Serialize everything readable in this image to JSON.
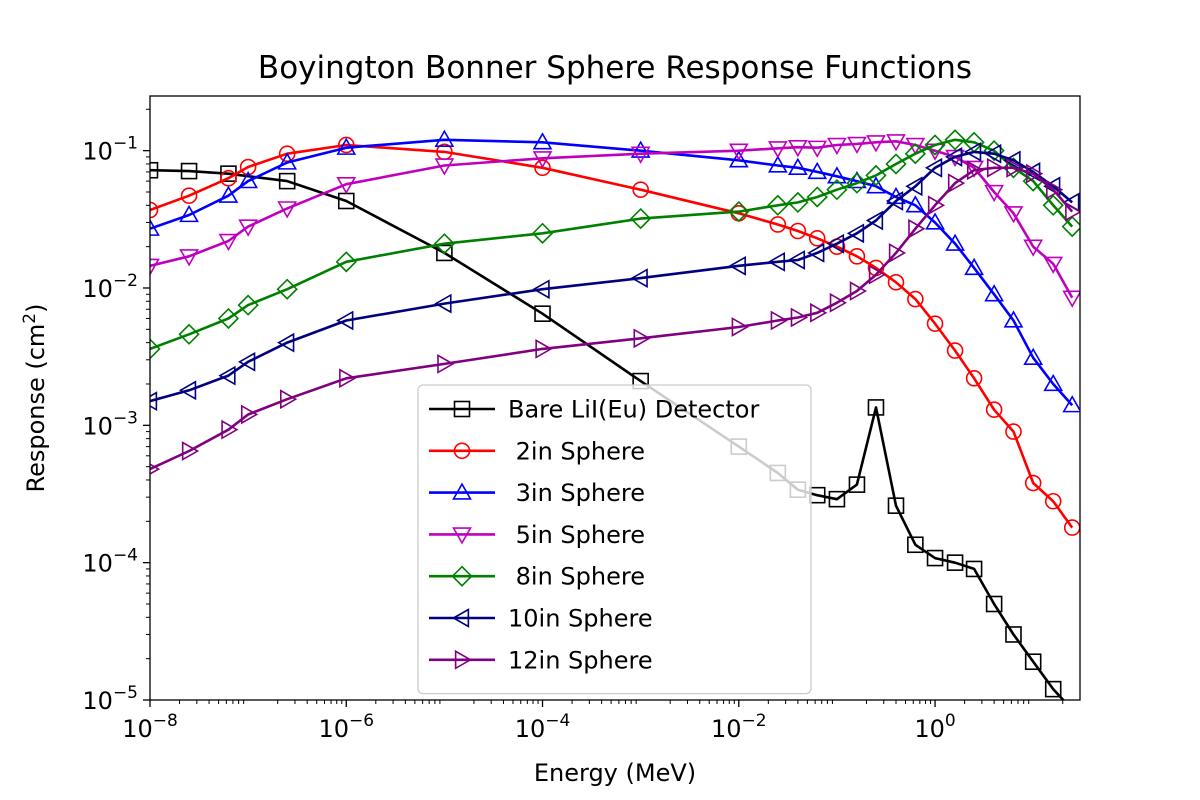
{
  "chart_data": {
    "type": "line",
    "title": "Boyington Bonner Sphere Response Functions",
    "xlabel": "Energy (MeV)",
    "ylabel_prefix": "Response (cm",
    "ylabel_sup": "2",
    "ylabel_suffix": ")",
    "xscale": "log",
    "yscale": "log",
    "xlim": [
      1e-08,
      30
    ],
    "ylim": [
      1e-05,
      0.25
    ],
    "x_ticks": [
      {
        "base": "10",
        "exp": "−8",
        "value": 1e-08
      },
      {
        "base": "10",
        "exp": "−6",
        "value": 1e-06
      },
      {
        "base": "10",
        "exp": "−4",
        "value": 0.0001
      },
      {
        "base": "10",
        "exp": "−2",
        "value": 0.01
      },
      {
        "base": "10",
        "exp": "0",
        "value": 1
      }
    ],
    "y_ticks": [
      {
        "base": "10",
        "exp": "−5",
        "value": 1e-05
      },
      {
        "base": "10",
        "exp": "−4",
        "value": 0.0001
      },
      {
        "base": "10",
        "exp": "−3",
        "value": 0.001
      },
      {
        "base": "10",
        "exp": "−2",
        "value": 0.01
      },
      {
        "base": "10",
        "exp": "−1",
        "value": 0.1
      }
    ],
    "grid": false,
    "legend_position": "lower-center",
    "series": [
      {
        "name": "Bare LiI(Eu) Detector",
        "color": "#000000",
        "marker": "square",
        "points": [
          [
            1e-08,
            0.072
          ],
          [
            2.5e-08,
            0.071
          ],
          [
            6.3e-08,
            0.068
          ],
          [
            2.5e-07,
            0.06
          ],
          [
            1e-06,
            0.043
          ],
          [
            1e-05,
            0.018
          ],
          [
            0.0001,
            0.0065
          ],
          [
            0.001,
            0.0021
          ],
          [
            0.01,
            0.0007
          ],
          [
            0.025,
            0.00045
          ],
          [
            0.04,
            0.00034
          ],
          [
            0.063,
            0.00031
          ],
          [
            0.1,
            0.00029
          ],
          [
            0.16,
            0.00037
          ],
          [
            0.25,
            0.00135
          ],
          [
            0.4,
            0.00026
          ],
          [
            0.63,
            0.000135
          ],
          [
            1.0,
            0.000108
          ],
          [
            1.6,
            0.0001
          ],
          [
            2.5,
            9e-05
          ],
          [
            4.0,
            5e-05
          ],
          [
            6.3,
            3e-05
          ],
          [
            10,
            1.9e-05
          ],
          [
            16,
            1.2e-05
          ],
          [
            25,
            8.5e-06
          ]
        ]
      },
      {
        "name": " 2in Sphere",
        "color": "#ff0000",
        "marker": "circle",
        "points": [
          [
            1e-08,
            0.037
          ],
          [
            2.5e-08,
            0.047
          ],
          [
            6.3e-08,
            0.063
          ],
          [
            1e-07,
            0.076
          ],
          [
            2.5e-07,
            0.095
          ],
          [
            1e-06,
            0.11
          ],
          [
            1e-05,
            0.098
          ],
          [
            0.0001,
            0.075
          ],
          [
            0.001,
            0.052
          ],
          [
            0.01,
            0.035
          ],
          [
            0.025,
            0.029
          ],
          [
            0.04,
            0.026
          ],
          [
            0.063,
            0.023
          ],
          [
            0.1,
            0.02
          ],
          [
            0.16,
            0.017
          ],
          [
            0.25,
            0.014
          ],
          [
            0.4,
            0.011
          ],
          [
            0.63,
            0.0083
          ],
          [
            1.0,
            0.0055
          ],
          [
            1.6,
            0.0035
          ],
          [
            2.5,
            0.0022
          ],
          [
            4.0,
            0.0013
          ],
          [
            6.3,
            0.0009
          ],
          [
            10,
            0.00038
          ],
          [
            16,
            0.00028
          ],
          [
            25,
            0.00018
          ]
        ]
      },
      {
        "name": " 3in Sphere",
        "color": "#0000ff",
        "marker": "triangle-up",
        "points": [
          [
            1e-08,
            0.027
          ],
          [
            2.5e-08,
            0.034
          ],
          [
            6.3e-08,
            0.047
          ],
          [
            1e-07,
            0.06
          ],
          [
            2.5e-07,
            0.082
          ],
          [
            1e-06,
            0.105
          ],
          [
            1e-05,
            0.12
          ],
          [
            0.0001,
            0.115
          ],
          [
            0.001,
            0.1
          ],
          [
            0.01,
            0.085
          ],
          [
            0.025,
            0.078
          ],
          [
            0.04,
            0.075
          ],
          [
            0.063,
            0.07
          ],
          [
            0.1,
            0.065
          ],
          [
            0.16,
            0.06
          ],
          [
            0.25,
            0.055
          ],
          [
            0.4,
            0.046
          ],
          [
            0.63,
            0.04
          ],
          [
            1.0,
            0.03
          ],
          [
            1.6,
            0.021
          ],
          [
            2.5,
            0.014
          ],
          [
            4.0,
            0.009
          ],
          [
            6.3,
            0.0058
          ],
          [
            10,
            0.0031
          ],
          [
            16,
            0.002
          ],
          [
            25,
            0.0014
          ]
        ]
      },
      {
        "name": " 5in Sphere",
        "color": "#bf00bf",
        "marker": "triangle-down",
        "points": [
          [
            1e-08,
            0.0145
          ],
          [
            2.5e-08,
            0.017
          ],
          [
            6.3e-08,
            0.022
          ],
          [
            1e-07,
            0.028
          ],
          [
            2.5e-07,
            0.038
          ],
          [
            1e-06,
            0.057
          ],
          [
            1e-05,
            0.078
          ],
          [
            0.0001,
            0.088
          ],
          [
            0.001,
            0.095
          ],
          [
            0.01,
            0.1
          ],
          [
            0.025,
            0.104
          ],
          [
            0.04,
            0.106
          ],
          [
            0.063,
            0.105
          ],
          [
            0.1,
            0.11
          ],
          [
            0.16,
            0.112
          ],
          [
            0.25,
            0.115
          ],
          [
            0.4,
            0.117
          ],
          [
            0.63,
            0.11
          ],
          [
            1.0,
            0.1
          ],
          [
            1.6,
            0.09
          ],
          [
            2.5,
            0.075
          ],
          [
            4.0,
            0.05
          ],
          [
            6.3,
            0.035
          ],
          [
            10,
            0.02
          ],
          [
            16,
            0.015
          ],
          [
            25,
            0.0085
          ]
        ]
      },
      {
        "name": " 8in Sphere",
        "color": "#008000",
        "marker": "diamond",
        "points": [
          [
            1e-08,
            0.0036
          ],
          [
            2.5e-08,
            0.0046
          ],
          [
            6.3e-08,
            0.006
          ],
          [
            1e-07,
            0.0075
          ],
          [
            2.5e-07,
            0.0098
          ],
          [
            1e-06,
            0.0155
          ],
          [
            1e-05,
            0.021
          ],
          [
            0.0001,
            0.025
          ],
          [
            0.001,
            0.032
          ],
          [
            0.01,
            0.036
          ],
          [
            0.025,
            0.04
          ],
          [
            0.04,
            0.042
          ],
          [
            0.063,
            0.046
          ],
          [
            0.1,
            0.052
          ],
          [
            0.16,
            0.058
          ],
          [
            0.25,
            0.066
          ],
          [
            0.4,
            0.08
          ],
          [
            0.63,
            0.095
          ],
          [
            1.0,
            0.11
          ],
          [
            1.6,
            0.12
          ],
          [
            2.5,
            0.115
          ],
          [
            4.0,
            0.1
          ],
          [
            6.3,
            0.075
          ],
          [
            10,
            0.06
          ],
          [
            16,
            0.04
          ],
          [
            25,
            0.028
          ]
        ]
      },
      {
        "name": "10in Sphere",
        "color": "#000080",
        "marker": "triangle-left",
        "points": [
          [
            1e-08,
            0.0015
          ],
          [
            2.5e-08,
            0.0018
          ],
          [
            6.3e-08,
            0.0023
          ],
          [
            1e-07,
            0.0029
          ],
          [
            2.5e-07,
            0.004
          ],
          [
            1e-06,
            0.0058
          ],
          [
            1e-05,
            0.0077
          ],
          [
            0.0001,
            0.0098
          ],
          [
            0.001,
            0.0118
          ],
          [
            0.01,
            0.0145
          ],
          [
            0.025,
            0.0155
          ],
          [
            0.04,
            0.016
          ],
          [
            0.063,
            0.018
          ],
          [
            0.1,
            0.021
          ],
          [
            0.16,
            0.025
          ],
          [
            0.25,
            0.031
          ],
          [
            0.4,
            0.043
          ],
          [
            0.63,
            0.055
          ],
          [
            1.0,
            0.075
          ],
          [
            1.6,
            0.09
          ],
          [
            2.5,
            0.098
          ],
          [
            4.0,
            0.095
          ],
          [
            6.3,
            0.085
          ],
          [
            10,
            0.07
          ],
          [
            16,
            0.055
          ],
          [
            25,
            0.042
          ]
        ]
      },
      {
        "name": "12in Sphere",
        "color": "#800080",
        "marker": "triangle-right",
        "points": [
          [
            1e-08,
            0.00048
          ],
          [
            2.5e-08,
            0.00065
          ],
          [
            6.3e-08,
            0.00093
          ],
          [
            1e-07,
            0.0012
          ],
          [
            2.5e-07,
            0.00155
          ],
          [
            1e-06,
            0.0022
          ],
          [
            1e-05,
            0.0028
          ],
          [
            0.0001,
            0.0036
          ],
          [
            0.001,
            0.0043
          ],
          [
            0.01,
            0.0052
          ],
          [
            0.025,
            0.0058
          ],
          [
            0.04,
            0.0061
          ],
          [
            0.063,
            0.0066
          ],
          [
            0.1,
            0.0078
          ],
          [
            0.16,
            0.0095
          ],
          [
            0.25,
            0.0125
          ],
          [
            0.4,
            0.018
          ],
          [
            0.63,
            0.027
          ],
          [
            1.0,
            0.04
          ],
          [
            1.6,
            0.058
          ],
          [
            2.5,
            0.072
          ],
          [
            4.0,
            0.075
          ],
          [
            6.3,
            0.075
          ],
          [
            10,
            0.068
          ],
          [
            16,
            0.052
          ],
          [
            25,
            0.036
          ]
        ]
      }
    ]
  }
}
